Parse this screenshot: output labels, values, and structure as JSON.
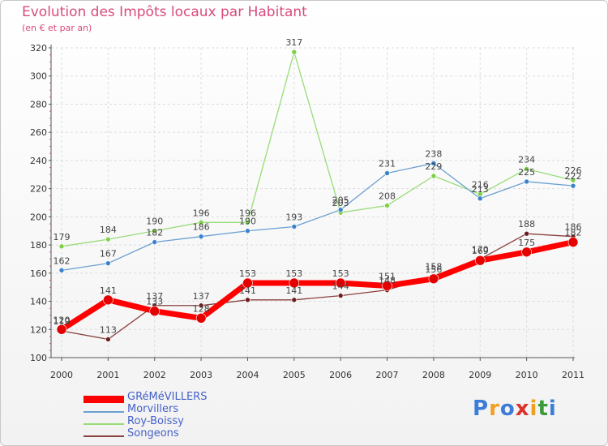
{
  "title": "Evolution des Impôts locaux par Habitant",
  "subtitle": "(en € et par an)",
  "logo": {
    "letters": [
      "P",
      "r",
      "o",
      "x",
      "i",
      "t",
      "i"
    ],
    "colors": [
      "#3b7dd8",
      "#f0a020",
      "#3b7dd8",
      "#e0302a",
      "#f0a020",
      "#3b9a3b",
      "#3b7dd8"
    ]
  },
  "legend": [
    {
      "name": "GRéMéVILLERS",
      "color": "#ff0000"
    },
    {
      "name": "Morvillers",
      "color": "#6a9fd0"
    },
    {
      "name": "Roy-Boissy",
      "color": "#98dc78"
    },
    {
      "name": "Songeons",
      "color": "#8b4040"
    }
  ],
  "chart_data": {
    "type": "line",
    "title": "Evolution des Impôts locaux par Habitant",
    "subtitle": "(en € et par an)",
    "xlabel": "",
    "ylabel": "",
    "ylim": [
      100,
      320
    ],
    "yticks": [
      100,
      120,
      140,
      160,
      180,
      200,
      220,
      240,
      260,
      280,
      300,
      320
    ],
    "categories": [
      "2000",
      "2001",
      "2002",
      "2003",
      "2004",
      "2005",
      "2006",
      "2007",
      "2008",
      "2009",
      "2010",
      "2011"
    ],
    "series": [
      {
        "name": "Roy-Boissy",
        "color": "#98dc78",
        "point_color": "#7ed048",
        "line_width": 1.3,
        "point_r": 3,
        "values": [
          179,
          184,
          190,
          196,
          196,
          317,
          203,
          208,
          229,
          216,
          234,
          226
        ]
      },
      {
        "name": "Morvillers",
        "color": "#6a9fd0",
        "point_color": "#3a82cc",
        "line_width": 1.3,
        "point_r": 3,
        "values": [
          162,
          167,
          182,
          186,
          190,
          193,
          205,
          231,
          238,
          213,
          225,
          222
        ]
      },
      {
        "name": "Songeons",
        "color": "#8b4040",
        "point_color": "#6e1e1e",
        "line_width": 1.3,
        "point_r": 3,
        "values": [
          119,
          113,
          137,
          137,
          141,
          141,
          144,
          148,
          158,
          170,
          188,
          186
        ]
      },
      {
        "name": "GRéMéVILLERS",
        "color": "#ff0000",
        "point_color": "#e40000",
        "line_width": 7,
        "point_r": 6,
        "values": [
          120,
          141,
          133,
          128,
          153,
          153,
          153,
          151,
          156,
          169,
          175,
          182
        ]
      }
    ]
  }
}
